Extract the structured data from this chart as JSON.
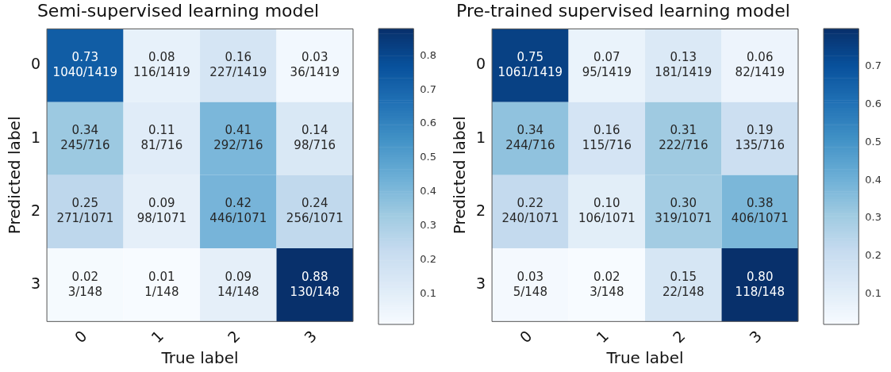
{
  "chart_data": [
    {
      "type": "heatmap",
      "title": "Semi-supervised learning model",
      "xlabel": "True label",
      "ylabel": "Predicted label",
      "categories": [
        "0",
        "1",
        "2",
        "3"
      ],
      "y_categories": [
        "0",
        "1",
        "2",
        "3"
      ],
      "cells": [
        [
          0.73,
          0.08,
          0.16,
          0.03
        ],
        [
          0.34,
          0.11,
          0.41,
          0.14
        ],
        [
          0.25,
          0.09,
          0.42,
          0.24
        ],
        [
          0.02,
          0.01,
          0.09,
          0.88
        ]
      ],
      "cell_labels": [
        [
          "0.73\n1040/1419",
          "0.08\n116/1419",
          "0.16\n227/1419",
          "0.03\n36/1419"
        ],
        [
          "0.34\n245/716",
          "0.11\n81/716",
          "0.41\n292/716",
          "0.14\n98/716"
        ],
        [
          "0.25\n271/1071",
          "0.09\n98/1071",
          "0.42\n446/1071",
          "0.24\n256/1071"
        ],
        [
          "0.02\n3/148",
          "0.01\n1/148",
          "0.09\n14/148",
          "0.88\n130/148"
        ]
      ],
      "clim": [
        0.01,
        0.88
      ],
      "cticks": [
        0.1,
        0.2,
        0.3,
        0.4,
        0.5,
        0.6,
        0.7,
        0.8
      ]
    },
    {
      "type": "heatmap",
      "title": "Pre-trained supervised learning model",
      "xlabel": "True label",
      "ylabel": "Predicted label",
      "categories": [
        "0",
        "1",
        "2",
        "3"
      ],
      "y_categories": [
        "0",
        "1",
        "2",
        "3"
      ],
      "cells": [
        [
          0.75,
          0.07,
          0.13,
          0.06
        ],
        [
          0.34,
          0.16,
          0.31,
          0.19
        ],
        [
          0.22,
          0.1,
          0.3,
          0.38
        ],
        [
          0.03,
          0.02,
          0.15,
          0.8
        ]
      ],
      "cell_labels": [
        [
          "0.75\n1061/1419",
          "0.07\n95/1419",
          "0.13\n181/1419",
          "0.06\n82/1419"
        ],
        [
          "0.34\n244/716",
          "0.16\n115/716",
          "0.31\n222/716",
          "0.19\n135/716"
        ],
        [
          "0.22\n240/1071",
          "0.10\n106/1071",
          "0.30\n319/1071",
          "0.38\n406/1071"
        ],
        [
          "0.03\n5/148",
          "0.02\n3/148",
          "0.15\n22/148",
          "0.80\n118/148"
        ]
      ],
      "clim": [
        0.02,
        0.8
      ],
      "cticks": [
        0.1,
        0.2,
        0.3,
        0.4,
        0.5,
        0.6,
        0.7
      ]
    }
  ]
}
